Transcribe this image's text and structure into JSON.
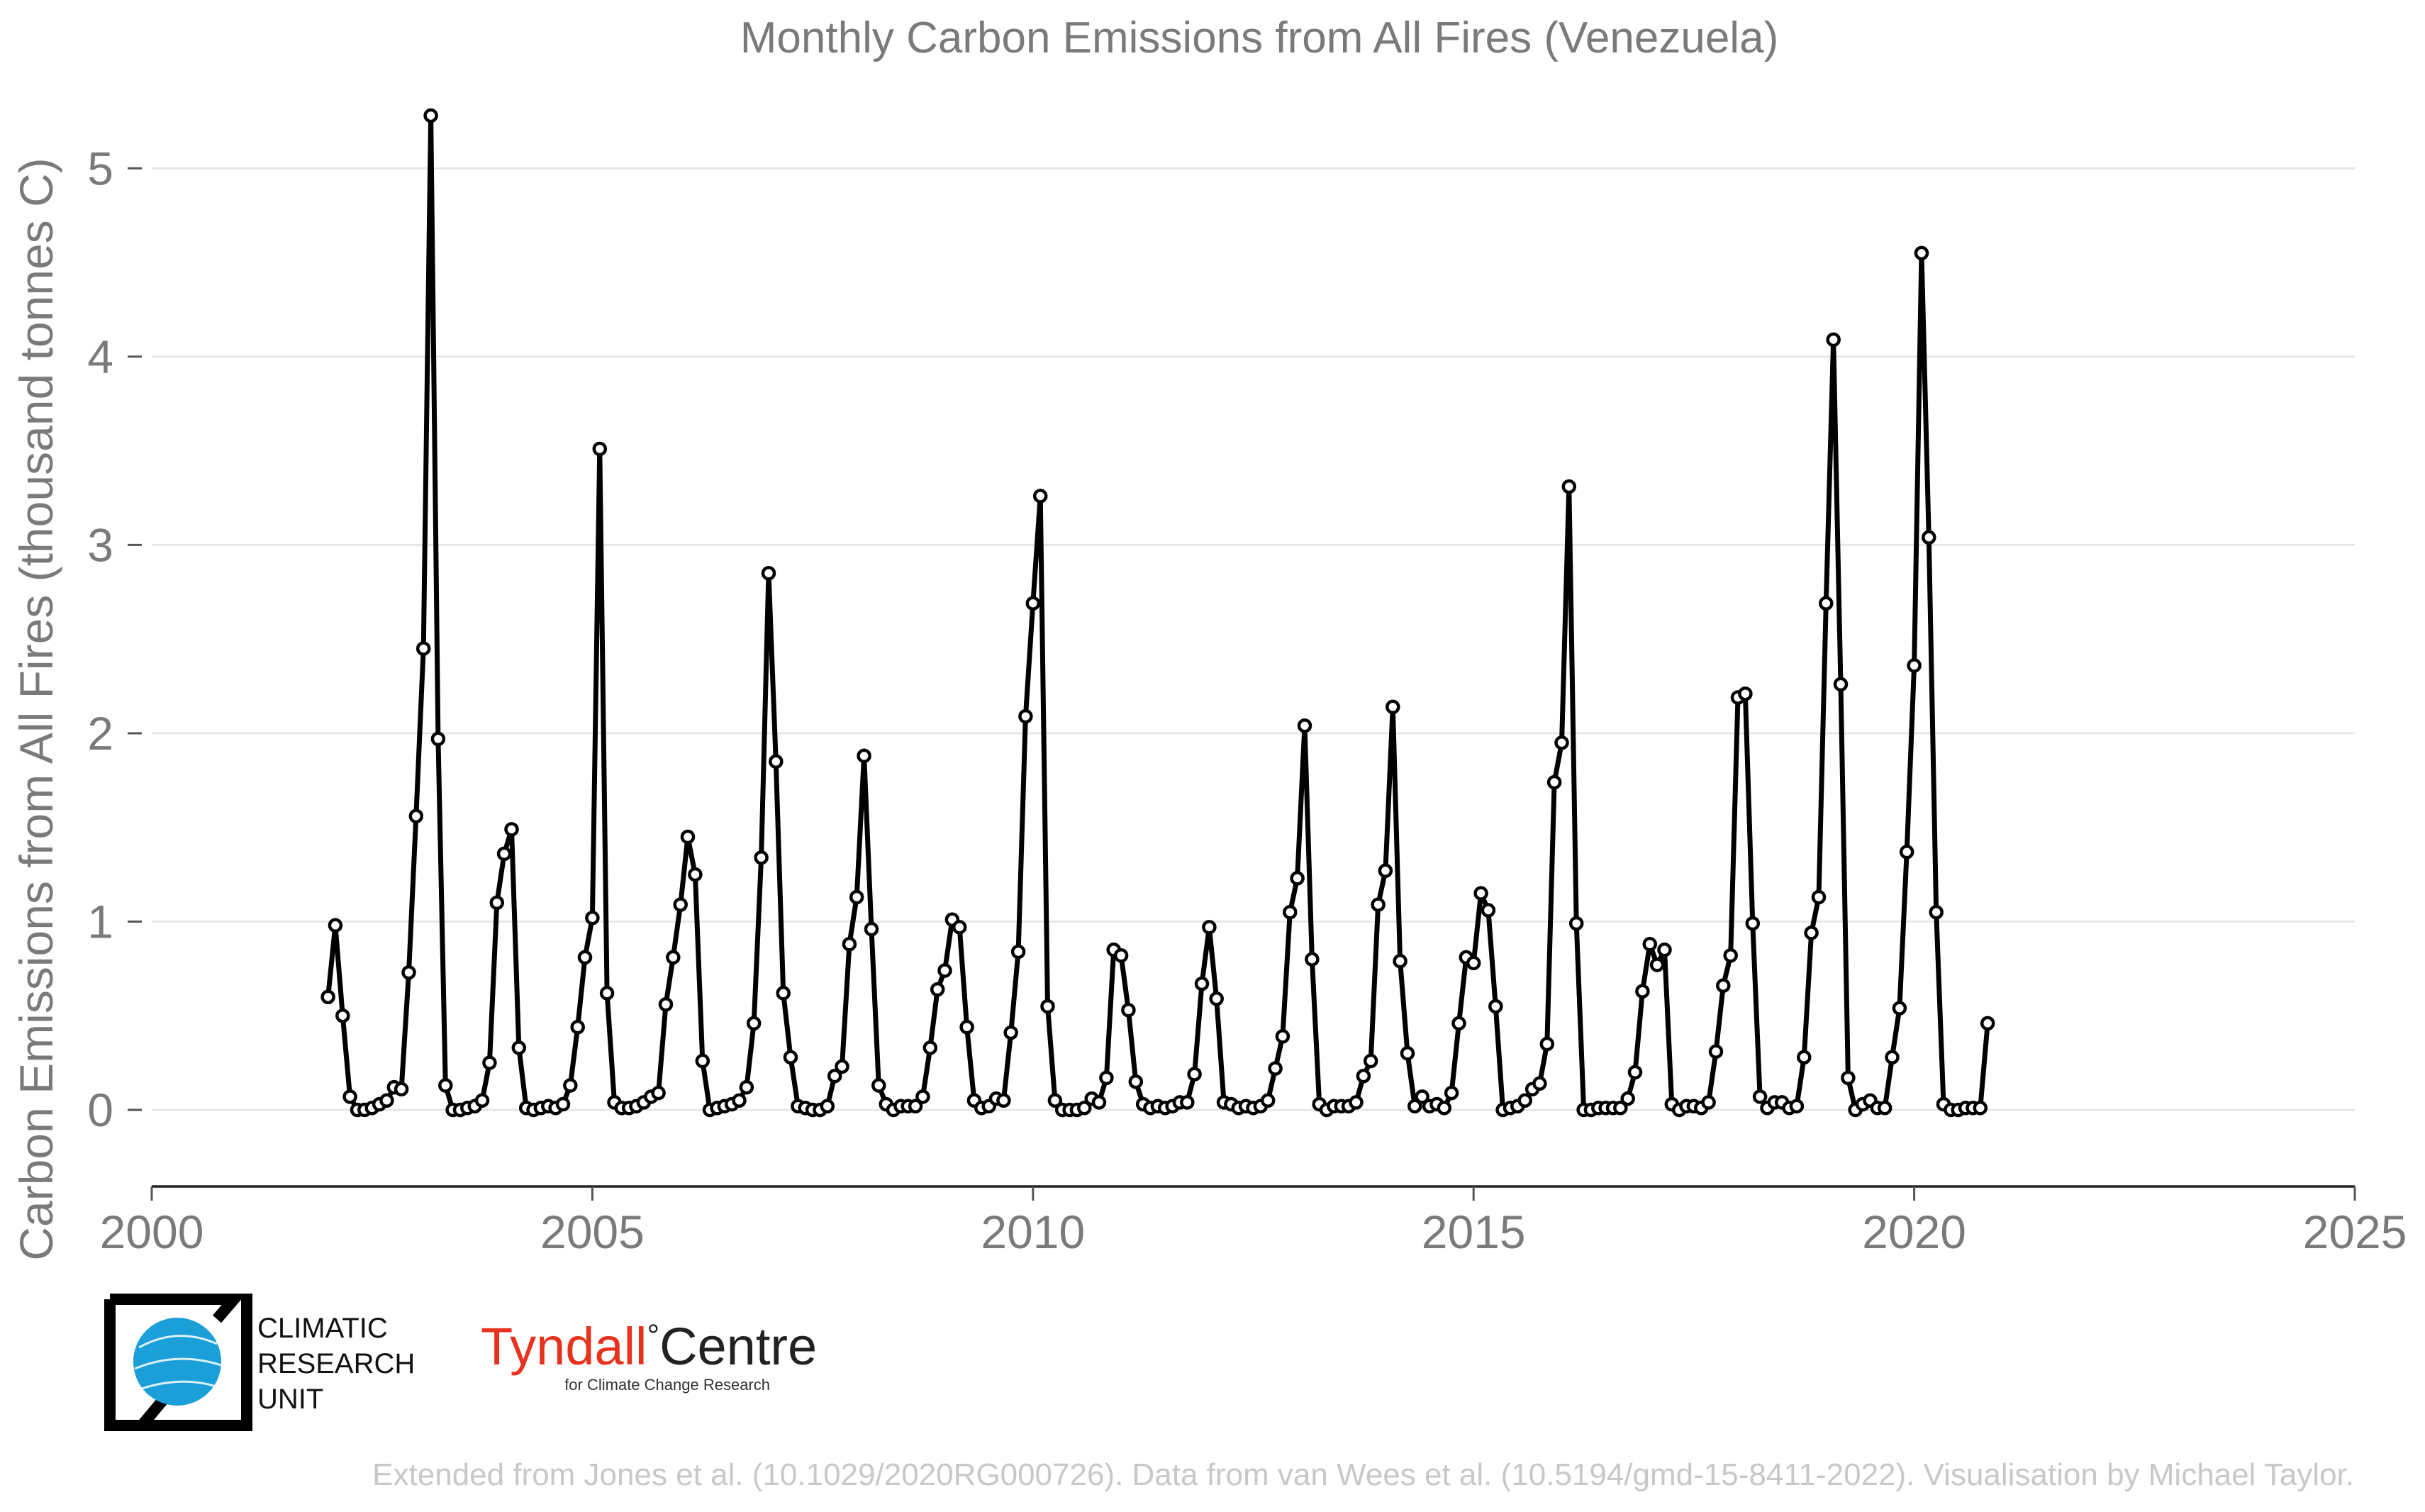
{
  "chart_data": {
    "type": "line",
    "title": "Monthly Carbon Emissions from All Fires (Venezuela)",
    "xlabel": "",
    "ylabel": "Carbon Emissions from All Fires (thousand tonnes C)",
    "xlim": [
      2000,
      2025
    ],
    "ylim": [
      0,
      5.25
    ],
    "x_ticks": [
      2000,
      2005,
      2010,
      2015,
      2020,
      2025
    ],
    "y_ticks": [
      0,
      1,
      2,
      3,
      4,
      5
    ],
    "grid": true,
    "legend": "none",
    "series": [
      {
        "start_year": 2002,
        "start_month": 1,
        "line_color": "#000000",
        "values": [
          0.6,
          0.98,
          0.5,
          0.07,
          0.0,
          0.0,
          0.01,
          0.03,
          0.05,
          0.12,
          0.11,
          0.73,
          1.56,
          2.45,
          5.28,
          1.97,
          0.13,
          0.0,
          0.0,
          0.01,
          0.02,
          0.05,
          0.25,
          1.1,
          1.36,
          1.49,
          0.33,
          0.01,
          0.0,
          0.01,
          0.02,
          0.01,
          0.03,
          0.13,
          0.44,
          0.81,
          1.02,
          3.51,
          0.62,
          0.04,
          0.01,
          0.01,
          0.02,
          0.04,
          0.07,
          0.09,
          0.56,
          0.81,
          1.09,
          1.45,
          1.25,
          0.26,
          0.0,
          0.01,
          0.02,
          0.03,
          0.05,
          0.12,
          0.46,
          1.34,
          2.85,
          1.85,
          0.62,
          0.28,
          0.02,
          0.01,
          0.0,
          0.0,
          0.02,
          0.18,
          0.23,
          0.88,
          1.13,
          1.88,
          0.96,
          0.13,
          0.03,
          0.0,
          0.02,
          0.02,
          0.02,
          0.07,
          0.33,
          0.64,
          0.74,
          1.01,
          0.97,
          0.44,
          0.05,
          0.01,
          0.02,
          0.06,
          0.05,
          0.41,
          0.84,
          2.09,
          2.69,
          3.26,
          0.55,
          0.05,
          0.0,
          0.0,
          0.0,
          0.01,
          0.06,
          0.04,
          0.17,
          0.85,
          0.82,
          0.53,
          0.15,
          0.03,
          0.01,
          0.02,
          0.01,
          0.02,
          0.04,
          0.04,
          0.19,
          0.67,
          0.97,
          0.59,
          0.04,
          0.03,
          0.01,
          0.02,
          0.01,
          0.02,
          0.05,
          0.22,
          0.39,
          1.05,
          1.23,
          2.04,
          0.8,
          0.03,
          0.0,
          0.02,
          0.02,
          0.02,
          0.04,
          0.18,
          0.26,
          1.09,
          1.27,
          2.14,
          0.79,
          0.3,
          0.02,
          0.07,
          0.02,
          0.03,
          0.01,
          0.09,
          0.46,
          0.81,
          0.78,
          1.15,
          1.06,
          0.55,
          0.0,
          0.01,
          0.02,
          0.05,
          0.11,
          0.14,
          0.35,
          1.74,
          1.95,
          3.31,
          0.99,
          0.0,
          0.0,
          0.01,
          0.01,
          0.01,
          0.01,
          0.06,
          0.2,
          0.63,
          0.88,
          0.77,
          0.85,
          0.03,
          0.0,
          0.02,
          0.02,
          0.01,
          0.04,
          0.31,
          0.66,
          0.82,
          2.19,
          2.21,
          0.99,
          0.07,
          0.01,
          0.04,
          0.04,
          0.01,
          0.02,
          0.28,
          0.94,
          1.13,
          2.69,
          4.09,
          2.26,
          0.17,
          0.0,
          0.03,
          0.05,
          0.01,
          0.01,
          0.28,
          0.54,
          1.37,
          2.36,
          4.55,
          3.04,
          1.05,
          0.03,
          0.0,
          0.0,
          0.01,
          0.01,
          0.01,
          0.46
        ]
      }
    ]
  },
  "logos": {
    "cru": {
      "lines": [
        "CLIMATIC",
        "RESEARCH",
        "UNIT"
      ],
      "globe_color": "#1a9fd9"
    },
    "tyndall": {
      "word1": "Tyndall",
      "degree": "°",
      "word2": "Centre",
      "subtitle": "for Climate Change Research",
      "accent": "#e8321e"
    }
  },
  "credit": "Extended from Jones et al. (10.1029/2020RG000726). Data from van Wees et al. (10.5194/gmd-15-8411-2022). Visualisation by Michael Taylor."
}
